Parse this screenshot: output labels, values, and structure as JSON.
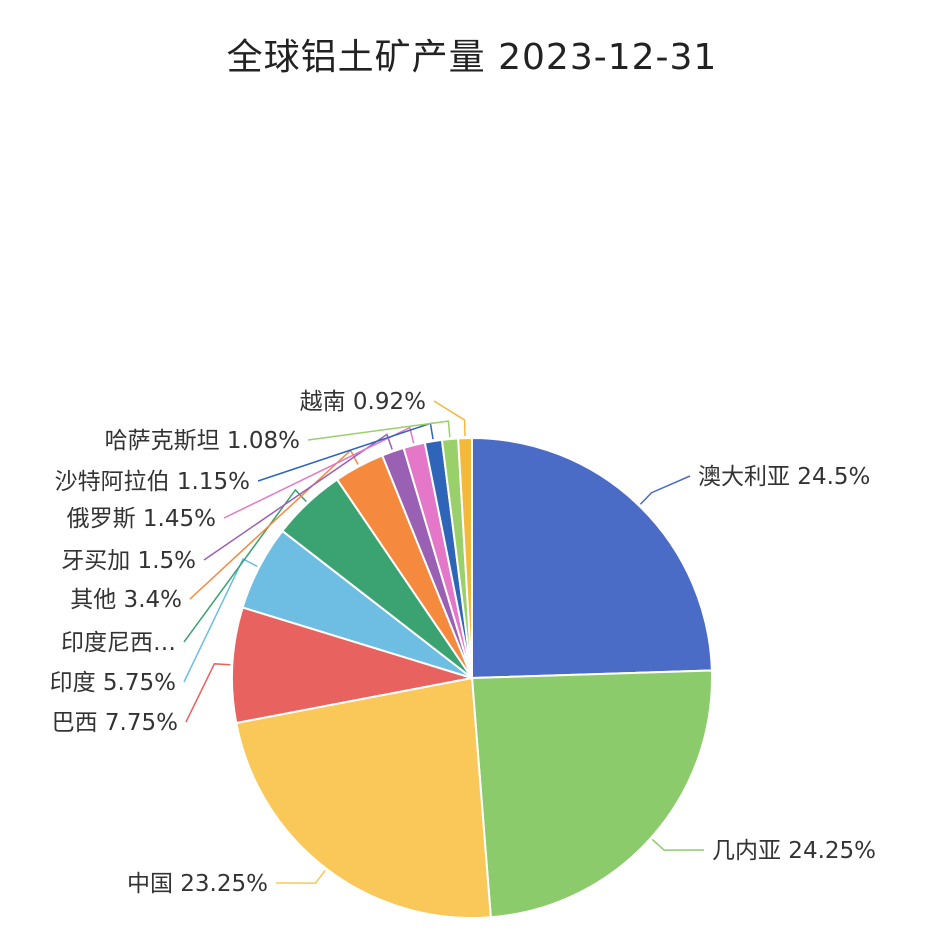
{
  "chart_data": {
    "type": "pie",
    "title": "全球铝土矿产量 2023-12-31",
    "slices": [
      {
        "name": "澳大利亚",
        "value": 24.5,
        "label": "澳大利亚 24.5%",
        "color": "#4a6bc6"
      },
      {
        "name": "几内亚",
        "value": 24.25,
        "label": "几内亚 24.25%",
        "color": "#8ccb6b"
      },
      {
        "name": "中国",
        "value": 23.25,
        "label": "中国 23.25%",
        "color": "#fac858"
      },
      {
        "name": "巴西",
        "value": 7.75,
        "label": "巴西 7.75%",
        "color": "#e8635f"
      },
      {
        "name": "印度",
        "value": 5.75,
        "label": "印度 5.75%",
        "color": "#6dbee2"
      },
      {
        "name": "印度尼西亚",
        "value": 5.0,
        "label": "印度尼西…",
        "color": "#3ba272"
      },
      {
        "name": "其他",
        "value": 3.4,
        "label": "其他 3.4%",
        "color": "#f58a3f"
      },
      {
        "name": "牙买加",
        "value": 1.5,
        "label": "牙买加 1.5%",
        "color": "#9a60b4"
      },
      {
        "name": "俄罗斯",
        "value": 1.45,
        "label": "俄罗斯 1.45%",
        "color": "#e477c8"
      },
      {
        "name": "沙特阿拉伯",
        "value": 1.15,
        "label": "沙特阿拉伯 1.15%",
        "color": "#2f65b8"
      },
      {
        "name": "哈萨克斯坦",
        "value": 1.08,
        "label": "哈萨克斯坦 1.08%",
        "color": "#9ad06a"
      },
      {
        "name": "越南",
        "value": 0.92,
        "label": "越南 0.92%",
        "color": "#f5b93a"
      }
    ],
    "legend": "none"
  }
}
